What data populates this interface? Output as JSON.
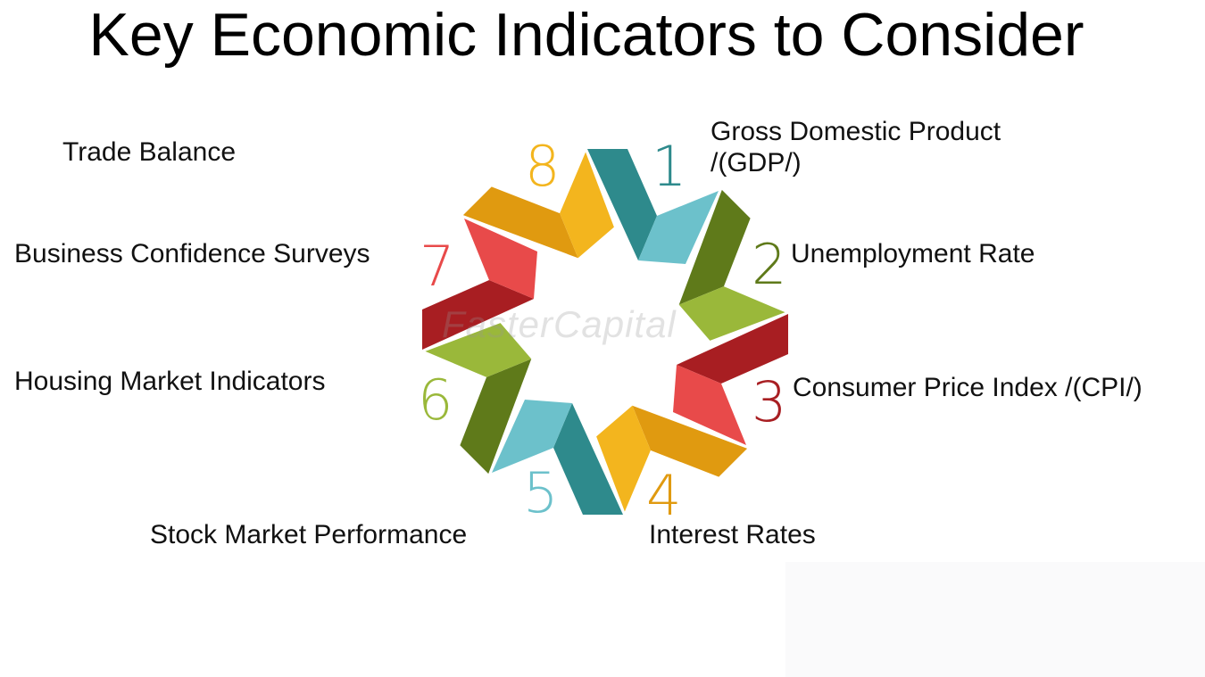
{
  "title": "Key Economic Indicators to Consider",
  "watermark": "FasterCapital",
  "items": [
    {
      "number": "1",
      "label": "Gross Domestic Product /(GDP/)",
      "label_line1": "Gross Domestic Product",
      "label_line2": "/(GDP/)",
      "color": "#2e8a8c",
      "light": "#6cc1cb"
    },
    {
      "number": "2",
      "label": "Unemployment Rate",
      "color": "#5f7a1a",
      "light": "#9ab83a"
    },
    {
      "number": "3",
      "label": "Consumer Price Index /(CPI/)",
      "color": "#a81e22",
      "light": "#e84a4a"
    },
    {
      "number": "4",
      "label": "Interest Rates",
      "color": "#e09a10",
      "light": "#f3b51e"
    },
    {
      "number": "5",
      "label": "Stock Market Performance",
      "color": "#2e8a8c",
      "light": "#6cc1cb"
    },
    {
      "number": "6",
      "label": "Housing Market Indicators",
      "color": "#5f7a1a",
      "light": "#9ab83a"
    },
    {
      "number": "7",
      "label": "Business Confidence Surveys",
      "color": "#a81e22",
      "light": "#e84a4a"
    },
    {
      "number": "8",
      "label": "Trade Balance",
      "color": "#e09a10",
      "light": "#f3b51e"
    }
  ]
}
